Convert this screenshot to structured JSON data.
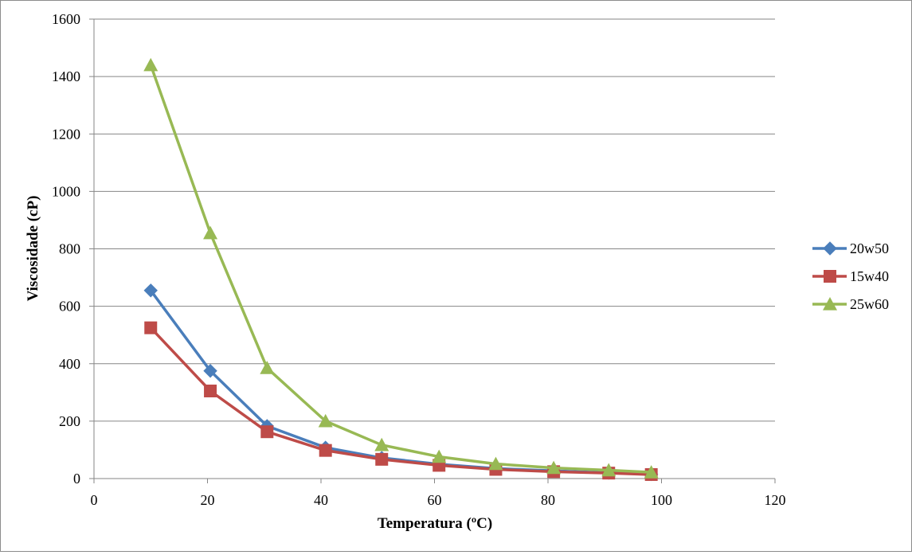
{
  "chart_data": {
    "type": "line",
    "xlabel": "Temperatura (ºC)",
    "ylabel": "Viscosidade (cP)",
    "xlim": [
      0,
      120
    ],
    "ylim": [
      0,
      1600
    ],
    "x_ticks": [
      0,
      20,
      40,
      60,
      80,
      100,
      120
    ],
    "y_ticks": [
      0,
      200,
      400,
      600,
      800,
      1000,
      1200,
      1400,
      1600
    ],
    "grid": "horizontal",
    "legend_position": "right",
    "series": [
      {
        "name": "20w50",
        "color": "#4a7ebb",
        "marker": "diamond",
        "x": [
          10,
          20.5,
          30.5,
          40.8,
          50.7,
          60.8,
          70.8,
          81,
          90.7,
          98.2
        ],
        "y": [
          655,
          375,
          183,
          108,
          72,
          50,
          35,
          27,
          20,
          15
        ]
      },
      {
        "name": "15w40",
        "color": "#be4b48",
        "marker": "square",
        "x": [
          10,
          20.5,
          30.5,
          40.8,
          50.7,
          60.8,
          70.8,
          81,
          90.7,
          98.2
        ],
        "y": [
          525,
          305,
          163,
          98,
          67,
          46,
          32,
          24,
          19,
          14
        ]
      },
      {
        "name": "25w60",
        "color": "#98b954",
        "marker": "triangle",
        "x": [
          10,
          20.5,
          30.5,
          40.8,
          50.7,
          60.8,
          70.8,
          81,
          90.7,
          98.2
        ],
        "y": [
          1440,
          855,
          385,
          200,
          117,
          76,
          51,
          37,
          29,
          22
        ]
      }
    ]
  }
}
